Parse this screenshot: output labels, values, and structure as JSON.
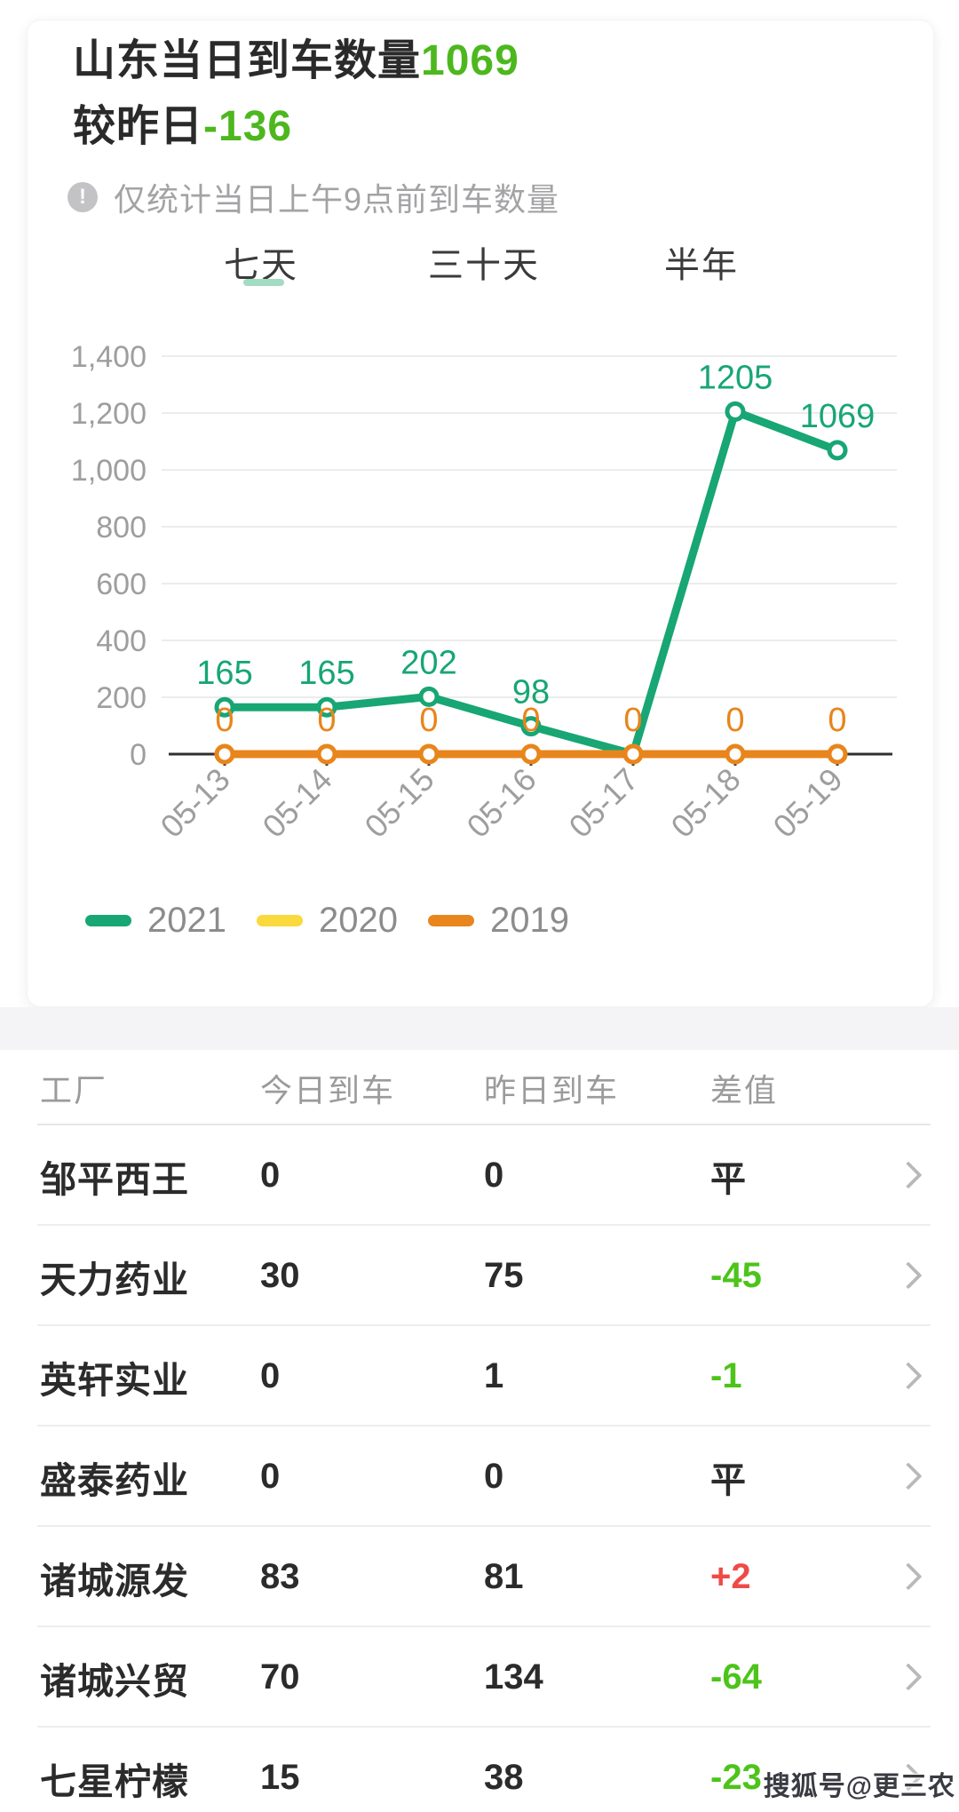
{
  "page": {
    "watermark": "搜狐号@更三农"
  },
  "summary_card": {
    "title_prefix": "山东当日到车数量",
    "title_value": "1069",
    "subtitle_prefix": "较昨日",
    "subtitle_value": "-136",
    "accent_green": "#4db71e",
    "info_glyph": "!",
    "note": "仅统计当日上午9点前到车数量",
    "tabs": [
      {
        "label": "七天",
        "active": true
      },
      {
        "label": "三十天",
        "active": false
      },
      {
        "label": "半年",
        "active": false
      }
    ],
    "tab_underline_color": "#a2dcc2"
  },
  "chart_data": {
    "type": "line",
    "x": [
      "05-13",
      "05-14",
      "05-15",
      "05-16",
      "05-17",
      "05-18",
      "05-19"
    ],
    "series": [
      {
        "name": "2021",
        "color": "#17a674",
        "values": [
          165,
          165,
          202,
          98,
          0,
          1205,
          1069
        ],
        "point_labels": [
          "165",
          "165",
          "202",
          "98",
          "",
          "1205",
          "1069"
        ]
      },
      {
        "name": "2020",
        "color": "#f9d93c",
        "values": [
          0,
          0,
          0,
          0,
          0,
          0,
          0
        ],
        "point_labels": []
      },
      {
        "name": "2019",
        "color": "#e8851c",
        "values": [
          0,
          0,
          0,
          0,
          0,
          0,
          0
        ],
        "point_labels": [
          "0",
          "0",
          "0",
          "0",
          "0",
          "0",
          "0"
        ]
      }
    ],
    "ylim": [
      0,
      1400
    ],
    "yticks": [
      {
        "value": 0,
        "label": "0"
      },
      {
        "value": 200,
        "label": "200"
      },
      {
        "value": 400,
        "label": "400"
      },
      {
        "value": 600,
        "label": "600"
      },
      {
        "value": 800,
        "label": "800"
      },
      {
        "value": 1000,
        "label": "1,000"
      },
      {
        "value": 1200,
        "label": "1,200"
      },
      {
        "value": 1400,
        "label": "1,400"
      }
    ],
    "grid": true,
    "legend_position": "bottom",
    "axis_color": "#2f2f2f",
    "grid_color": "#ececec",
    "tick_text_color": "#9e9e9e"
  },
  "table": {
    "headers": [
      "工厂",
      "今日到车",
      "昨日到车",
      "差值"
    ],
    "diff_colors": {
      "flat": "#2b2b2b",
      "down": "#4cc41a",
      "up": "#ef4b46"
    },
    "rows": [
      {
        "factory": "邹平西王",
        "today": "0",
        "yesterday": "0",
        "diff": "平",
        "trend": "flat"
      },
      {
        "factory": "天力药业",
        "today": "30",
        "yesterday": "75",
        "diff": "-45",
        "trend": "down"
      },
      {
        "factory": "英轩实业",
        "today": "0",
        "yesterday": "1",
        "diff": "-1",
        "trend": "down"
      },
      {
        "factory": "盛泰药业",
        "today": "0",
        "yesterday": "0",
        "diff": "平",
        "trend": "flat"
      },
      {
        "factory": "诸城源发",
        "today": "83",
        "yesterday": "81",
        "diff": "+2",
        "trend": "up"
      },
      {
        "factory": "诸城兴贸",
        "today": "70",
        "yesterday": "134",
        "diff": "-64",
        "trend": "down"
      },
      {
        "factory": "七星柠檬",
        "today": "15",
        "yesterday": "38",
        "diff": "-23",
        "trend": "down"
      }
    ]
  }
}
